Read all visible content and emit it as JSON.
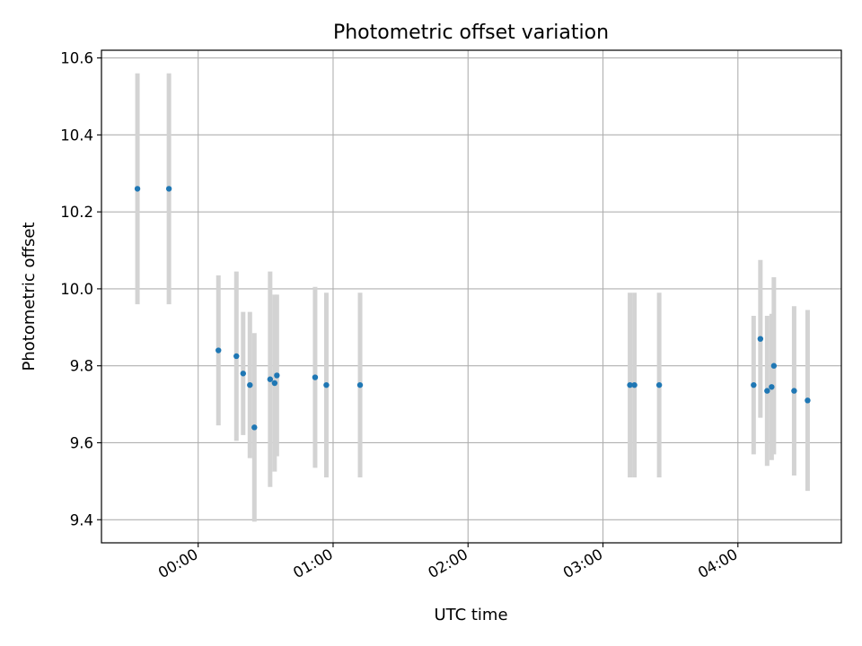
{
  "chart_data": {
    "type": "scatter",
    "title": "Photometric offset variation",
    "xlabel": "UTC time",
    "ylabel": "Photometric offset",
    "xlim": [
      "23:17",
      "04:46"
    ],
    "ylim": [
      9.34,
      10.62
    ],
    "grid": true,
    "legend": "none",
    "x_ticks": [
      "00:00",
      "01:00",
      "02:00",
      "03:00",
      "04:00"
    ],
    "y_ticks": [
      "9.4",
      "9.6",
      "9.8",
      "10.0",
      "10.2",
      "10.4",
      "10.6"
    ],
    "marker_color": "#1f77b4",
    "errorbar_color": "#d3d3d3",
    "points": [
      {
        "x": "23:33",
        "y": 10.26,
        "yerr": 0.3
      },
      {
        "x": "23:47",
        "y": 10.26,
        "yerr": 0.3
      },
      {
        "x": "00:09",
        "y": 9.84,
        "yerr": 0.195
      },
      {
        "x": "00:17",
        "y": 9.825,
        "yerr": 0.22
      },
      {
        "x": "00:20",
        "y": 9.78,
        "yerr": 0.16
      },
      {
        "x": "00:23",
        "y": 9.75,
        "yerr": 0.19
      },
      {
        "x": "00:25",
        "y": 9.64,
        "yerr": 0.245
      },
      {
        "x": "00:32",
        "y": 9.765,
        "yerr": 0.28
      },
      {
        "x": "00:34",
        "y": 9.755,
        "yerr": 0.23
      },
      {
        "x": "00:35",
        "y": 9.775,
        "yerr": 0.21
      },
      {
        "x": "00:52",
        "y": 9.77,
        "yerr": 0.235
      },
      {
        "x": "00:57",
        "y": 9.75,
        "yerr": 0.24
      },
      {
        "x": "01:12",
        "y": 9.75,
        "yerr": 0.24
      },
      {
        "x": "03:12",
        "y": 9.75,
        "yerr": 0.24
      },
      {
        "x": "03:14",
        "y": 9.75,
        "yerr": 0.24
      },
      {
        "x": "03:25",
        "y": 9.75,
        "yerr": 0.24
      },
      {
        "x": "04:07",
        "y": 9.75,
        "yerr": 0.18
      },
      {
        "x": "04:10",
        "y": 9.87,
        "yerr": 0.205
      },
      {
        "x": "04:13",
        "y": 9.735,
        "yerr": 0.195
      },
      {
        "x": "04:15",
        "y": 9.745,
        "yerr": 0.19
      },
      {
        "x": "04:16",
        "y": 9.8,
        "yerr": 0.23
      },
      {
        "x": "04:25",
        "y": 9.735,
        "yerr": 0.22
      },
      {
        "x": "04:31",
        "y": 9.71,
        "yerr": 0.235
      }
    ]
  }
}
